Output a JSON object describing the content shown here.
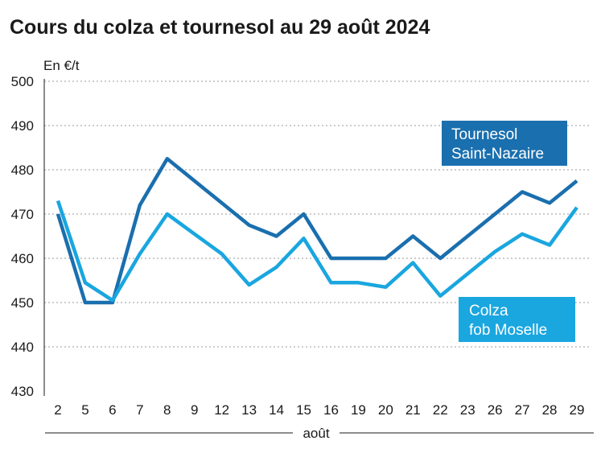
{
  "chart_data": {
    "type": "line",
    "title": "Cours du colza et tournesol au 29 août 2024",
    "unit_label": "En €/t",
    "xlabel": "août",
    "ylim": [
      430,
      500
    ],
    "yticks": [
      430,
      440,
      450,
      460,
      470,
      480,
      490,
      500
    ],
    "grid": true,
    "categories": [
      "2",
      "5",
      "6",
      "7",
      "8",
      "9",
      "12",
      "13",
      "14",
      "15",
      "16",
      "19",
      "20",
      "21",
      "22",
      "23",
      "26",
      "27",
      "28",
      "29"
    ],
    "series": [
      {
        "name": "Tournesol Saint-Nazaire",
        "legend_lines": [
          "Tournesol",
          "Saint-Nazaire"
        ],
        "color": "#1a6fae",
        "values": [
          470,
          450,
          450,
          472,
          482.5,
          477.5,
          472.5,
          467.5,
          465,
          470,
          460,
          460,
          460,
          465,
          460,
          465,
          470,
          475,
          472.5,
          477.5
        ]
      },
      {
        "name": "Colza fob Moselle",
        "legend_lines": [
          "Colza",
          "fob Moselle"
        ],
        "color": "#1aa6df",
        "values": [
          473,
          454.5,
          450.5,
          461,
          470,
          465.5,
          461,
          454,
          458,
          464.5,
          454.5,
          454.5,
          453.5,
          459,
          451.5,
          456.5,
          461.5,
          465.5,
          463,
          471.5
        ]
      }
    ]
  }
}
